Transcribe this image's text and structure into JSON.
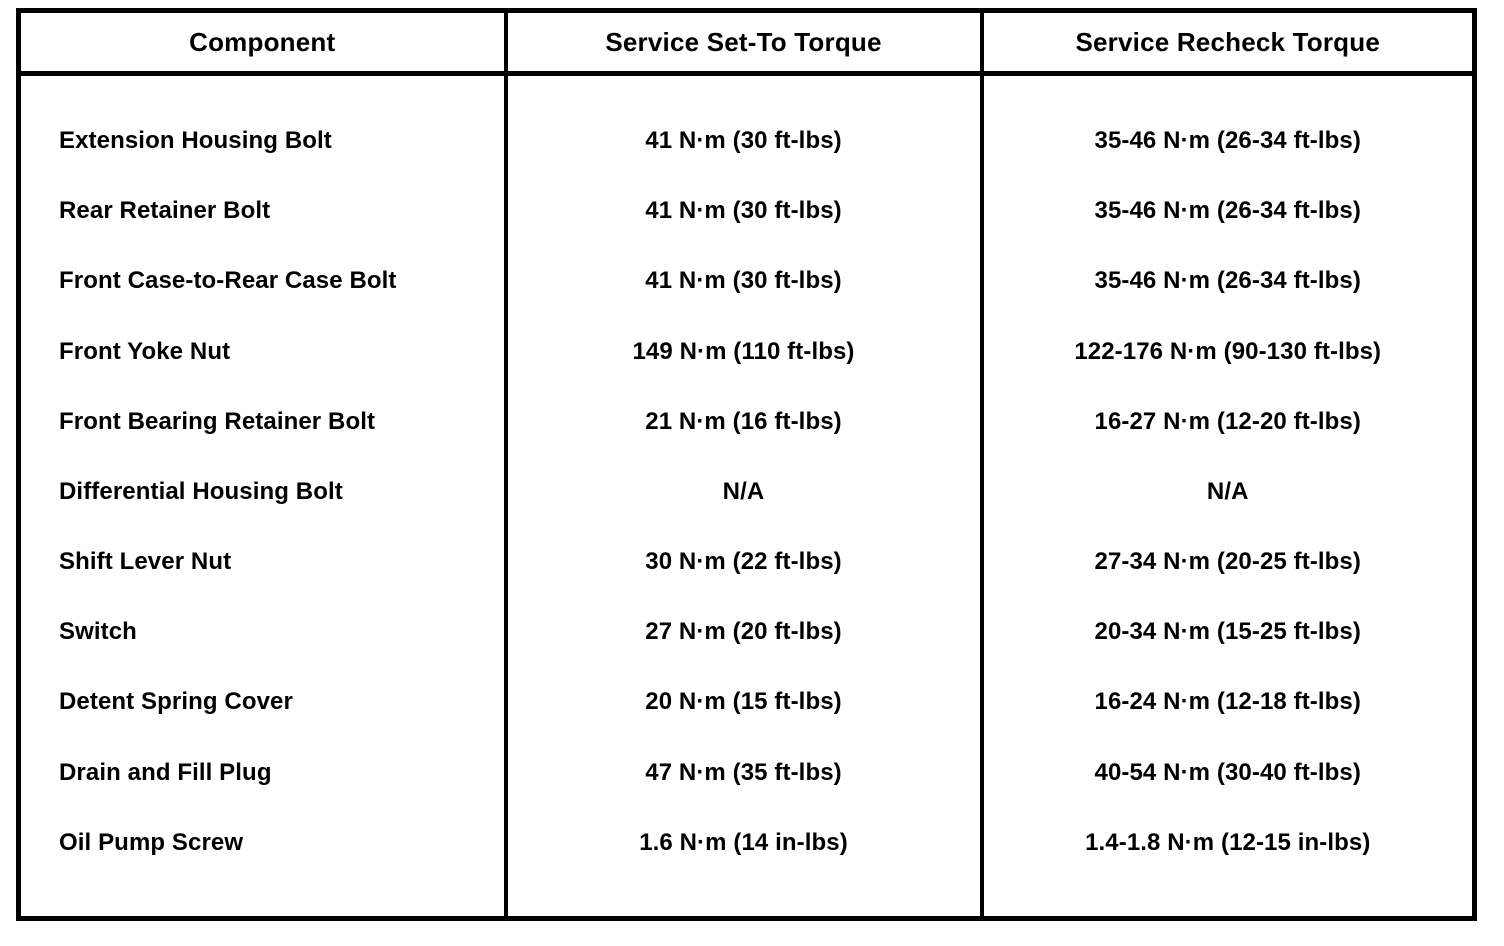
{
  "table": {
    "columns": [
      {
        "label": "Component"
      },
      {
        "label": "Service Set-To Torque"
      },
      {
        "label": "Service Recheck Torque"
      }
    ],
    "rows": [
      {
        "component": "Extension Housing Bolt",
        "set_to": "41 N·m (30 ft-lbs)",
        "recheck": "35-46 N·m (26-34 ft-lbs)"
      },
      {
        "component": "Rear Retainer Bolt",
        "set_to": "41 N·m (30 ft-lbs)",
        "recheck": "35-46 N·m (26-34 ft-lbs)"
      },
      {
        "component": "Front Case-to-Rear Case Bolt",
        "set_to": "41 N·m (30 ft-lbs)",
        "recheck": "35-46 N·m (26-34 ft-lbs)"
      },
      {
        "component": "Front Yoke Nut",
        "set_to": "149 N·m (110 ft-lbs)",
        "recheck": "122-176 N·m (90-130 ft-lbs)"
      },
      {
        "component": "Front Bearing Retainer Bolt",
        "set_to": "21 N·m (16 ft-lbs)",
        "recheck": "16-27 N·m (12-20 ft-lbs)"
      },
      {
        "component": "Differential Housing Bolt",
        "set_to": "N/A",
        "recheck": "N/A"
      },
      {
        "component": "Shift Lever Nut",
        "set_to": "30 N·m (22 ft-lbs)",
        "recheck": "27-34 N·m (20-25 ft-lbs)"
      },
      {
        "component": "Switch",
        "set_to": "27 N·m (20 ft-lbs)",
        "recheck": "20-34 N·m (15-25 ft-lbs)"
      },
      {
        "component": "Detent Spring Cover",
        "set_to": "20 N·m (15 ft-lbs)",
        "recheck": "16-24 N·m (12-18 ft-lbs)"
      },
      {
        "component": "Drain and Fill Plug",
        "set_to": "47 N·m (35 ft-lbs)",
        "recheck": "40-54 N·m (30-40 ft-lbs)"
      },
      {
        "component": "Oil Pump Screw",
        "set_to": "1.6 N·m (14 in-lbs)",
        "recheck": "1.4-1.8 N·m (12-15 in-lbs)"
      }
    ]
  }
}
